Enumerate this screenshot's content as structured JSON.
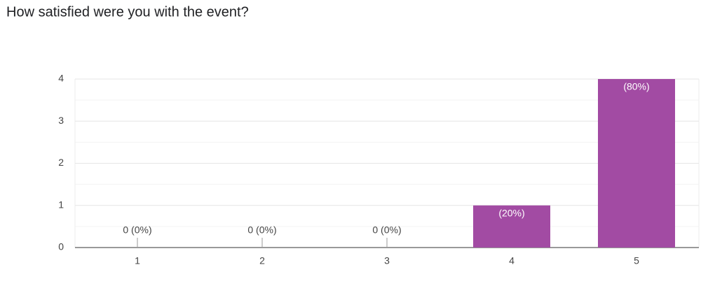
{
  "chart_data": {
    "type": "bar",
    "title": "How satisfied were you with the event?",
    "categories": [
      "1",
      "2",
      "3",
      "4",
      "5"
    ],
    "values": [
      0,
      0,
      0,
      1,
      4
    ],
    "value_labels": [
      "0 (0%)",
      "0 (0%)",
      "0 (0%)",
      "(20%)",
      "(80%)"
    ],
    "color": "#a24ba3",
    "ylim": [
      0,
      4
    ],
    "yticks": [
      0,
      1,
      2,
      3,
      4
    ],
    "minor_yticks": [
      0.5,
      1.5,
      2.5,
      3.5
    ],
    "grid": true
  }
}
